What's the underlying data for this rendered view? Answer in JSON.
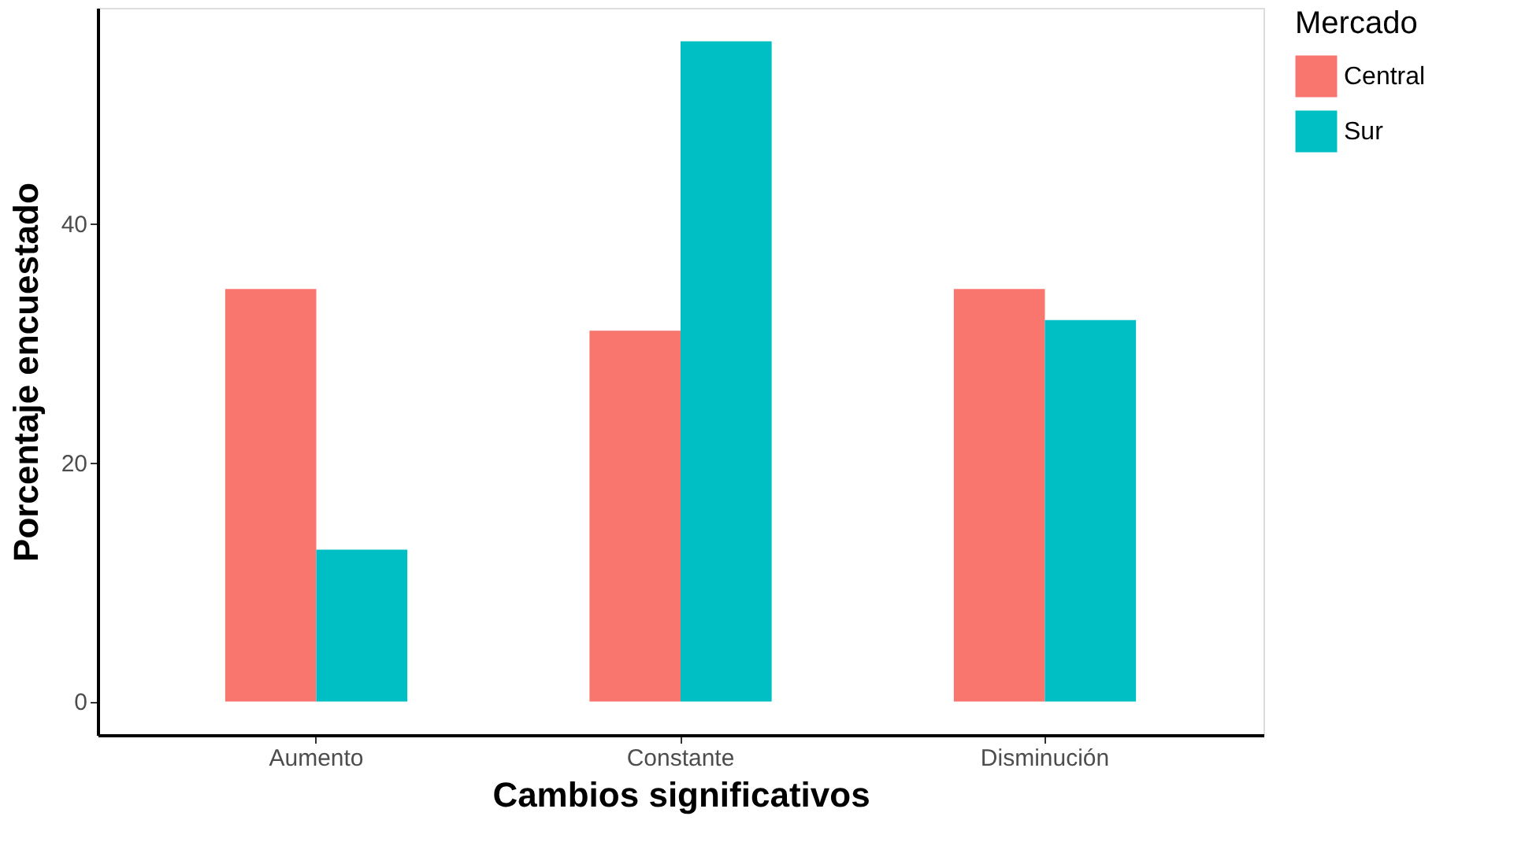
{
  "chart_data": {
    "type": "bar",
    "xlabel": "Cambios significativos",
    "ylabel": "Porcentaje encuestado",
    "legend_title": "Mercado",
    "categories": [
      "Aumento",
      "Constante",
      "Disminución"
    ],
    "series": [
      {
        "name": "Central",
        "color": "#f8766d",
        "values": [
          34.5,
          31.0,
          34.5
        ]
      },
      {
        "name": "Sur",
        "color": "#00bfc4",
        "values": [
          12.7,
          55.2,
          31.9
        ]
      }
    ],
    "ylim": [
      -2.8,
      58
    ],
    "yticks": [
      0,
      20,
      40
    ],
    "grid": false,
    "legend": "right"
  }
}
